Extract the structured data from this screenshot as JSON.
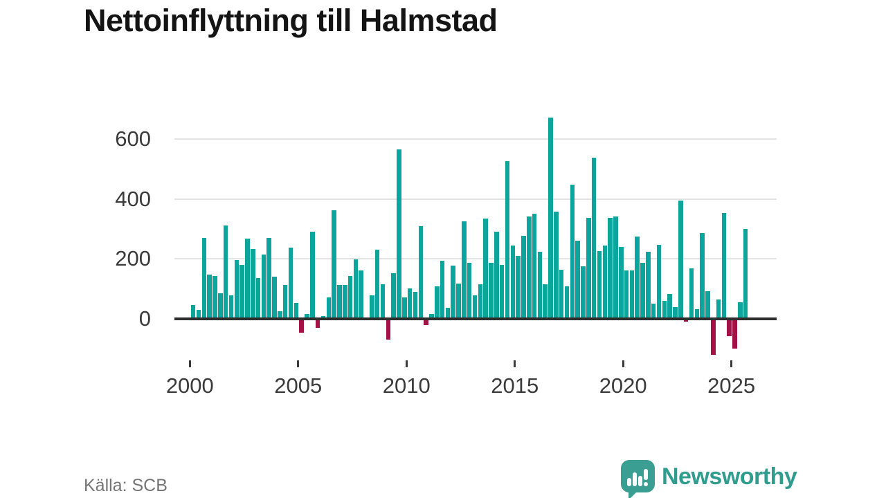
{
  "title": "Nettoinflyttning till Halmstad",
  "source": {
    "label": "Källa: SCB"
  },
  "branding": {
    "name": "Newsworthy",
    "logo_icon": "speech-bubble-bar-chart-icon"
  },
  "colors": {
    "positive_bar": "#0ca59b",
    "negative_bar": "#a31245",
    "brand_teal": "#3a9e92",
    "gridline": "#e3e3e3",
    "zero_axis": "#2e2e2e",
    "tick_text": "#3a3a3a",
    "title_text": "#141414",
    "source_text": "#757575"
  },
  "chart_data": {
    "type": "bar",
    "title": "Nettoinflyttning till Halmstad",
    "xlabel": "",
    "ylabel": "",
    "frequency": "quarterly",
    "grid": "horizontal",
    "legend": "none",
    "ylim": [
      -140,
      700
    ],
    "yticks": [
      0,
      200,
      400,
      600
    ],
    "xticks": [
      2000,
      2005,
      2010,
      2015,
      2020,
      2025
    ],
    "x": [
      "2000Q1",
      "2000Q2",
      "2000Q3",
      "2000Q4",
      "2001Q1",
      "2001Q2",
      "2001Q3",
      "2001Q4",
      "2002Q1",
      "2002Q2",
      "2002Q3",
      "2002Q4",
      "2003Q1",
      "2003Q2",
      "2003Q3",
      "2003Q4",
      "2004Q1",
      "2004Q2",
      "2004Q3",
      "2004Q4",
      "2005Q1",
      "2005Q2",
      "2005Q3",
      "2005Q4",
      "2006Q1",
      "2006Q2",
      "2006Q3",
      "2006Q4",
      "2007Q1",
      "2007Q2",
      "2007Q3",
      "2007Q4",
      "2008Q1",
      "2008Q2",
      "2008Q3",
      "2008Q4",
      "2009Q1",
      "2009Q2",
      "2009Q3",
      "2009Q4",
      "2010Q1",
      "2010Q2",
      "2010Q3",
      "2010Q4",
      "2011Q1",
      "2011Q2",
      "2011Q3",
      "2011Q4",
      "2012Q1",
      "2012Q2",
      "2012Q3",
      "2012Q4",
      "2013Q1",
      "2013Q2",
      "2013Q3",
      "2013Q4",
      "2014Q1",
      "2014Q2",
      "2014Q3",
      "2014Q4",
      "2015Q1",
      "2015Q2",
      "2015Q3",
      "2015Q4",
      "2016Q1",
      "2016Q2",
      "2016Q3",
      "2016Q4",
      "2017Q1",
      "2017Q2",
      "2017Q3",
      "2017Q4",
      "2018Q1",
      "2018Q2",
      "2018Q3",
      "2018Q4",
      "2019Q1",
      "2019Q2",
      "2019Q3",
      "2019Q4",
      "2020Q1",
      "2020Q2",
      "2020Q3",
      "2020Q4",
      "2021Q1",
      "2021Q2",
      "2021Q3",
      "2021Q4",
      "2022Q1",
      "2022Q2",
      "2022Q3",
      "2022Q4",
      "2023Q1",
      "2023Q2",
      "2023Q3",
      "2023Q4",
      "2024Q1",
      "2024Q2",
      "2024Q3",
      "2024Q4",
      "2025Q1",
      "2025Q2",
      "2025Q3"
    ],
    "values": [
      46,
      29,
      269,
      146,
      142,
      84,
      310,
      77,
      196,
      180,
      267,
      232,
      136,
      213,
      270,
      141,
      24,
      112,
      238,
      51,
      -48,
      15,
      290,
      -32,
      8,
      71,
      361,
      113,
      113,
      142,
      197,
      161,
      2,
      78,
      229,
      114,
      -70,
      152,
      565,
      71,
      101,
      88,
      309,
      -21,
      16,
      108,
      194,
      36,
      178,
      117,
      325,
      185,
      77,
      115,
      334,
      186,
      290,
      179,
      525,
      245,
      209,
      277,
      342,
      351,
      223,
      115,
      672,
      358,
      163,
      108,
      447,
      259,
      175,
      337,
      537,
      225,
      245,
      336,
      342,
      240,
      161,
      161,
      274,
      186,
      224,
      49,
      246,
      58,
      82,
      38,
      394,
      -11,
      168,
      32,
      286,
      91,
      -122,
      64,
      353,
      -58,
      -100,
      55,
      300
    ]
  }
}
